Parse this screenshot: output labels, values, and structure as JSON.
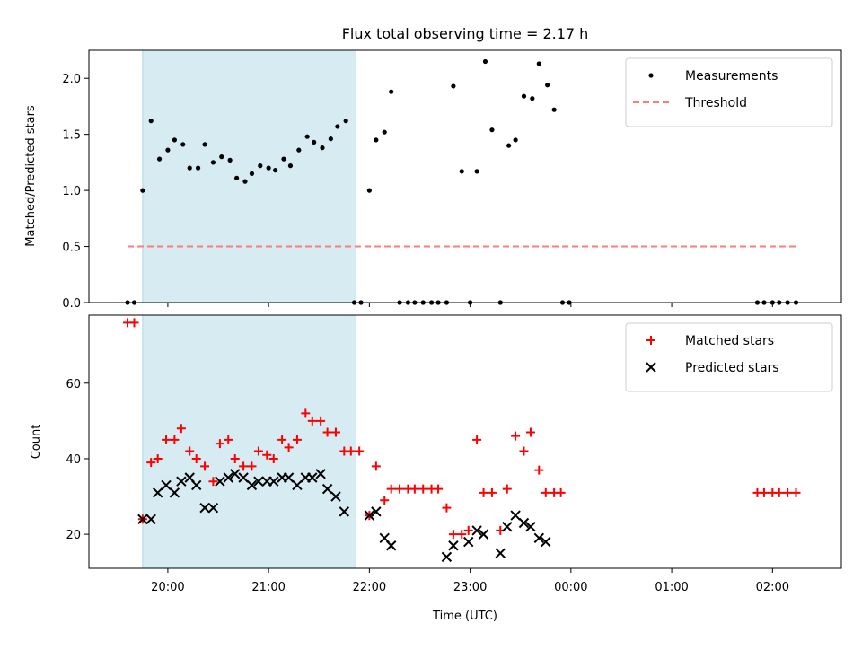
{
  "title": "Flux total observing time = 2.17 h",
  "colors": {
    "shade": "#add8e6",
    "threshold": "#ff7b7b",
    "matched": "#ff0000",
    "predicted": "#000000",
    "measurement": "#000000"
  },
  "chart_data": [
    {
      "type": "scatter",
      "ylabel": "Matched/Predicted stars",
      "xlim": [
        "19:13",
        "02:41"
      ],
      "ylim": [
        0,
        2.25
      ],
      "yticks": [
        0.0,
        0.5,
        1.0,
        1.5,
        2.0
      ],
      "ytick_labels": [
        "0.0",
        "0.5",
        "1.0",
        "1.5",
        "2.0"
      ],
      "shaded_span": [
        "19:45",
        "21:52"
      ],
      "legend": {
        "placement": "upper right",
        "entries": [
          "Measurements",
          "Threshold"
        ]
      },
      "threshold": {
        "name": "Threshold",
        "y": 0.5,
        "x_range": [
          "19:36",
          "02:15"
        ]
      },
      "series": [
        {
          "name": "Measurements",
          "marker": "dot",
          "points": [
            [
              "19:36",
              0
            ],
            [
              "19:40",
              0
            ],
            [
              "19:45",
              1.0
            ],
            [
              "19:50",
              1.62
            ],
            [
              "19:55",
              1.28
            ],
            [
              "20:00",
              1.36
            ],
            [
              "20:04",
              1.45
            ],
            [
              "20:09",
              1.41
            ],
            [
              "20:13",
              1.2
            ],
            [
              "20:18",
              1.2
            ],
            [
              "20:22",
              1.41
            ],
            [
              "20:27",
              1.25
            ],
            [
              "20:32",
              1.3
            ],
            [
              "20:37",
              1.27
            ],
            [
              "20:41",
              1.11
            ],
            [
              "20:46",
              1.08
            ],
            [
              "20:50",
              1.15
            ],
            [
              "20:55",
              1.22
            ],
            [
              "21:00",
              1.2
            ],
            [
              "21:04",
              1.18
            ],
            [
              "21:09",
              1.28
            ],
            [
              "21:13",
              1.22
            ],
            [
              "21:18",
              1.36
            ],
            [
              "21:23",
              1.48
            ],
            [
              "21:27",
              1.43
            ],
            [
              "21:32",
              1.38
            ],
            [
              "21:37",
              1.46
            ],
            [
              "21:41",
              1.57
            ],
            [
              "21:46",
              1.62
            ],
            [
              "21:51",
              0
            ],
            [
              "21:55",
              0
            ],
            [
              "22:00",
              1.0
            ],
            [
              "22:04",
              1.45
            ],
            [
              "22:09",
              1.52
            ],
            [
              "22:13",
              1.88
            ],
            [
              "22:18",
              0
            ],
            [
              "22:23",
              0
            ],
            [
              "22:27",
              0
            ],
            [
              "22:32",
              0
            ],
            [
              "22:37",
              0
            ],
            [
              "22:41",
              0
            ],
            [
              "22:46",
              0
            ],
            [
              "22:50",
              1.93
            ],
            [
              "22:55",
              1.17
            ],
            [
              "23:00",
              0
            ],
            [
              "23:04",
              1.17
            ],
            [
              "23:09",
              2.15
            ],
            [
              "23:13",
              1.54
            ],
            [
              "23:18",
              0
            ],
            [
              "23:23",
              1.4
            ],
            [
              "23:27",
              1.45
            ],
            [
              "23:32",
              1.84
            ],
            [
              "23:37",
              1.82
            ],
            [
              "23:41",
              2.13
            ],
            [
              "23:46",
              1.94
            ],
            [
              "23:50",
              1.72
            ],
            [
              "23:55",
              0
            ],
            [
              "23:59",
              0
            ],
            [
              "01:51",
              0
            ],
            [
              "01:55",
              0
            ],
            [
              "02:00",
              0
            ],
            [
              "02:04",
              0
            ],
            [
              "02:09",
              0
            ],
            [
              "02:14",
              0
            ]
          ]
        }
      ]
    },
    {
      "type": "scatter",
      "xlabel": "Time (UTC)",
      "ylabel": "Count",
      "xlim": [
        "19:13",
        "02:41"
      ],
      "ylim": [
        11,
        78
      ],
      "yticks": [
        20,
        40,
        60
      ],
      "ytick_labels": [
        "20",
        "40",
        "60"
      ],
      "xticks": [
        "20:00",
        "21:00",
        "22:00",
        "23:00",
        "00:00",
        "01:00",
        "02:00"
      ],
      "xtick_labels": [
        "20:00",
        "21:00",
        "22:00",
        "23:00",
        "00:00",
        "01:00",
        "02:00"
      ],
      "shaded_span": [
        "19:45",
        "21:52"
      ],
      "legend": {
        "placement": "upper right",
        "entries": [
          "Matched stars",
          "Predicted stars"
        ]
      },
      "series": [
        {
          "name": "Matched stars",
          "marker": "plus",
          "points": [
            [
              "19:36",
              76
            ],
            [
              "19:40",
              76
            ],
            [
              "19:45",
              24
            ],
            [
              "19:50",
              39
            ],
            [
              "19:54",
              40
            ],
            [
              "19:59",
              45
            ],
            [
              "20:04",
              45
            ],
            [
              "20:08",
              48
            ],
            [
              "20:13",
              42
            ],
            [
              "20:17",
              40
            ],
            [
              "20:22",
              38
            ],
            [
              "20:27",
              34
            ],
            [
              "20:31",
              44
            ],
            [
              "20:36",
              45
            ],
            [
              "20:40",
              40
            ],
            [
              "20:45",
              38
            ],
            [
              "20:50",
              38
            ],
            [
              "20:54",
              42
            ],
            [
              "20:59",
              41
            ],
            [
              "21:03",
              40
            ],
            [
              "21:08",
              45
            ],
            [
              "21:12",
              43
            ],
            [
              "21:17",
              45
            ],
            [
              "21:22",
              52
            ],
            [
              "21:26",
              50
            ],
            [
              "21:31",
              50
            ],
            [
              "21:35",
              47
            ],
            [
              "21:40",
              47
            ],
            [
              "21:45",
              42
            ],
            [
              "21:49",
              42
            ],
            [
              "21:54",
              42
            ],
            [
              "22:00",
              25
            ],
            [
              "22:04",
              38
            ],
            [
              "22:09",
              29
            ],
            [
              "22:13",
              32
            ],
            [
              "22:18",
              32
            ],
            [
              "22:23",
              32
            ],
            [
              "22:27",
              32
            ],
            [
              "22:32",
              32
            ],
            [
              "22:37",
              32
            ],
            [
              "22:41",
              32
            ],
            [
              "22:46",
              27
            ],
            [
              "22:50",
              20
            ],
            [
              "22:55",
              20
            ],
            [
              "22:59",
              21
            ],
            [
              "23:04",
              45
            ],
            [
              "23:08",
              31
            ],
            [
              "23:13",
              31
            ],
            [
              "23:18",
              21
            ],
            [
              "23:22",
              32
            ],
            [
              "23:27",
              46
            ],
            [
              "23:32",
              42
            ],
            [
              "23:36",
              47
            ],
            [
              "23:41",
              37
            ],
            [
              "23:45",
              31
            ],
            [
              "23:50",
              31
            ],
            [
              "23:54",
              31
            ],
            [
              "01:51",
              31
            ],
            [
              "01:55",
              31
            ],
            [
              "02:00",
              31
            ],
            [
              "02:04",
              31
            ],
            [
              "02:09",
              31
            ],
            [
              "02:14",
              31
            ]
          ]
        },
        {
          "name": "Predicted stars",
          "marker": "x",
          "points": [
            [
              "19:45",
              24
            ],
            [
              "19:50",
              24
            ],
            [
              "19:54",
              31
            ],
            [
              "19:59",
              33
            ],
            [
              "20:04",
              31
            ],
            [
              "20:08",
              34
            ],
            [
              "20:13",
              35
            ],
            [
              "20:17",
              33
            ],
            [
              "20:22",
              27
            ],
            [
              "20:27",
              27
            ],
            [
              "20:31",
              34
            ],
            [
              "20:36",
              35
            ],
            [
              "20:40",
              36
            ],
            [
              "20:45",
              35
            ],
            [
              "20:50",
              33
            ],
            [
              "20:54",
              34
            ],
            [
              "20:59",
              34
            ],
            [
              "21:03",
              34
            ],
            [
              "21:08",
              35
            ],
            [
              "21:12",
              35
            ],
            [
              "21:17",
              33
            ],
            [
              "21:22",
              35
            ],
            [
              "21:26",
              35
            ],
            [
              "21:31",
              36
            ],
            [
              "21:35",
              32
            ],
            [
              "21:40",
              30
            ],
            [
              "21:45",
              26
            ],
            [
              "22:00",
              25
            ],
            [
              "22:04",
              26
            ],
            [
              "22:09",
              19
            ],
            [
              "22:13",
              17
            ],
            [
              "22:46",
              14
            ],
            [
              "22:50",
              17
            ],
            [
              "22:59",
              18
            ],
            [
              "23:04",
              21
            ],
            [
              "23:08",
              20
            ],
            [
              "23:18",
              15
            ],
            [
              "23:22",
              22
            ],
            [
              "23:27",
              25
            ],
            [
              "23:32",
              23
            ],
            [
              "23:36",
              22
            ],
            [
              "23:41",
              19
            ],
            [
              "23:45",
              18
            ]
          ]
        }
      ]
    }
  ]
}
